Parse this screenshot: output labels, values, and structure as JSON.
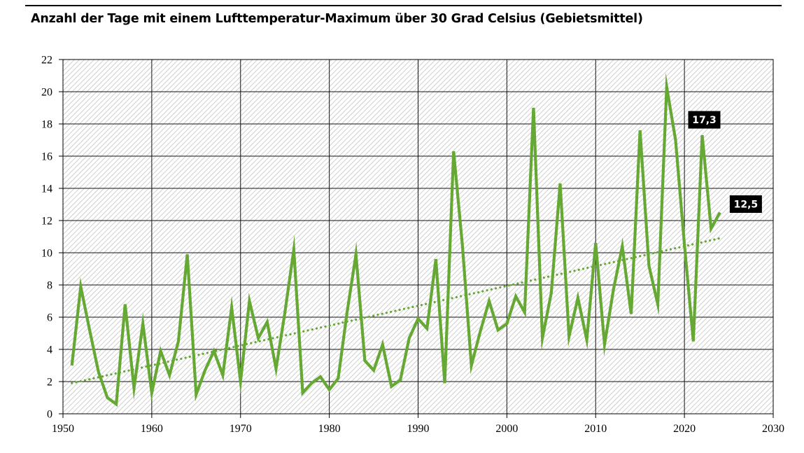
{
  "chart_data": {
    "type": "line",
    "title": "Anzahl der Tage mit einem Lufttemperatur-Maximum über 30 Grad Celsius (Gebietsmittel)",
    "xlabel": "",
    "ylabel": "",
    "xlim": [
      1950,
      2030
    ],
    "ylim": [
      0,
      22
    ],
    "x_ticks": [
      "1950",
      "1960",
      "1970",
      "1980",
      "1990",
      "2000",
      "2010",
      "2020",
      "2030"
    ],
    "y_ticks": [
      "0",
      "2",
      "4",
      "6",
      "8",
      "10",
      "12",
      "14",
      "16",
      "18",
      "20",
      "22"
    ],
    "grid": true,
    "legend": "none",
    "series": [
      {
        "color": "#66a834",
        "style": "solid",
        "x": [
          1951,
          1952,
          1953,
          1954,
          1955,
          1956,
          1957,
          1958,
          1959,
          1960,
          1961,
          1962,
          1963,
          1964,
          1965,
          1966,
          1967,
          1968,
          1969,
          1970,
          1971,
          1972,
          1973,
          1974,
          1975,
          1976,
          1977,
          1978,
          1979,
          1980,
          1981,
          1982,
          1983,
          1984,
          1985,
          1986,
          1987,
          1988,
          1989,
          1990,
          1991,
          1992,
          1993,
          1994,
          1995,
          1996,
          1997,
          1998,
          1999,
          2000,
          2001,
          2002,
          2003,
          2004,
          2005,
          2006,
          2007,
          2008,
          2009,
          2010,
          2011,
          2012,
          2013,
          2014,
          2015,
          2016,
          2017,
          2018,
          2019,
          2020,
          2021,
          2022,
          2023,
          2024
        ],
        "values": [
          3.0,
          7.9,
          5.2,
          2.6,
          1.0,
          0.6,
          6.8,
          1.6,
          5.6,
          1.3,
          3.9,
          2.4,
          4.5,
          9.9,
          1.2,
          2.7,
          3.9,
          2.4,
          6.6,
          2.0,
          7.0,
          4.7,
          5.7,
          2.8,
          6.3,
          10.2,
          1.3,
          1.9,
          2.3,
          1.5,
          2.2,
          6.3,
          9.9,
          3.3,
          2.7,
          4.3,
          1.7,
          2.1,
          4.7,
          5.9,
          5.3,
          9.6,
          1.9,
          16.3,
          10.4,
          3.0,
          5.1,
          7.0,
          5.2,
          5.6,
          7.3,
          6.3,
          19.0,
          4.7,
          7.5,
          14.3,
          4.8,
          7.2,
          4.6,
          10.6,
          4.3,
          7.7,
          10.4,
          6.2,
          17.6,
          9.2,
          6.8,
          20.3,
          17.0,
          10.5,
          4.5,
          17.3,
          11.5,
          12.5
        ]
      },
      {
        "color": "#66a834",
        "style": "dotted",
        "x": [
          1951,
          2024
        ],
        "values": [
          1.9,
          10.9
        ]
      }
    ],
    "annotations": [
      {
        "x": 2022,
        "y": 17.3,
        "text": "17,3"
      },
      {
        "x": 2024,
        "y": 12.5,
        "text": "12,5"
      }
    ]
  }
}
